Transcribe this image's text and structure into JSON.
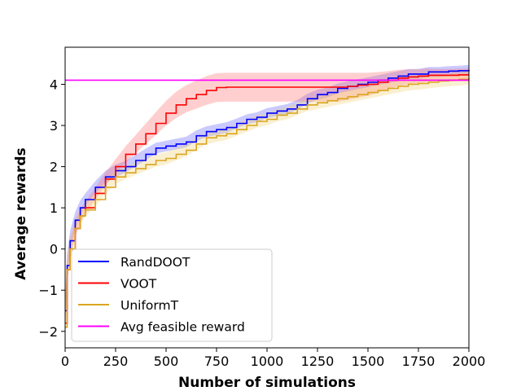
{
  "chart_data": {
    "type": "line",
    "title": "",
    "xlabel": "Number of simulations",
    "ylabel": "Average rewards",
    "xlim": [
      0,
      2000
    ],
    "ylim": [
      -2.4,
      4.9
    ],
    "xticks": [
      0,
      250,
      500,
      750,
      1000,
      1250,
      1500,
      1750,
      2000
    ],
    "xtick_labels": [
      "0",
      "250",
      "500",
      "750",
      "1000",
      "1250",
      "1500",
      "1750",
      "2000"
    ],
    "yticks": [
      -2,
      -1,
      0,
      1,
      2,
      3,
      4
    ],
    "ytick_labels": [
      "−2",
      "−1",
      "0",
      "1",
      "2",
      "3",
      "4"
    ],
    "grid": false,
    "legend_position": "lower-left",
    "series": [
      {
        "name": "RandDOOT",
        "color": "#0000ff",
        "band_color": "#5b5bff",
        "x": [
          0,
          10,
          25,
          50,
          75,
          100,
          150,
          200,
          250,
          300,
          350,
          400,
          450,
          500,
          550,
          600,
          650,
          700,
          750,
          800,
          850,
          900,
          950,
          1000,
          1050,
          1100,
          1150,
          1200,
          1250,
          1300,
          1350,
          1400,
          1450,
          1500,
          1550,
          1600,
          1650,
          1700,
          1750,
          1800,
          1850,
          1900,
          1950,
          2000
        ],
        "y": [
          -1.5,
          -0.4,
          0.2,
          0.7,
          1.0,
          1.2,
          1.5,
          1.75,
          1.9,
          2.0,
          2.15,
          2.3,
          2.45,
          2.5,
          2.55,
          2.6,
          2.75,
          2.85,
          2.9,
          2.95,
          3.05,
          3.15,
          3.2,
          3.3,
          3.35,
          3.4,
          3.5,
          3.65,
          3.75,
          3.8,
          3.9,
          3.95,
          4.0,
          4.05,
          4.1,
          4.15,
          4.2,
          4.25,
          4.25,
          4.3,
          4.3,
          4.32,
          4.33,
          4.35
        ],
        "spread": [
          0.3,
          0.3,
          0.25,
          0.2,
          0.18,
          0.15,
          0.15,
          0.15,
          0.15,
          0.14,
          0.14,
          0.14,
          0.13,
          0.13,
          0.13,
          0.13,
          0.13,
          0.13,
          0.13,
          0.13,
          0.12,
          0.12,
          0.12,
          0.12,
          0.12,
          0.12,
          0.12,
          0.12,
          0.12,
          0.12,
          0.12,
          0.12,
          0.12,
          0.12,
          0.12,
          0.12,
          0.12,
          0.12,
          0.12,
          0.12,
          0.12,
          0.12,
          0.12,
          0.12
        ]
      },
      {
        "name": "VOOT",
        "color": "#ff0000",
        "band_color": "#ff6b6b",
        "x": [
          0,
          10,
          25,
          50,
          75,
          100,
          150,
          200,
          250,
          300,
          350,
          400,
          450,
          500,
          550,
          600,
          650,
          700,
          750,
          800,
          850,
          900,
          950,
          1000,
          1050,
          1100,
          1150,
          1200,
          1250,
          1300,
          1350,
          1400,
          1450,
          1500,
          1550,
          1600,
          1650,
          1700,
          1750,
          1800,
          1850,
          1900,
          1950,
          2000
        ],
        "y": [
          -1.8,
          -0.5,
          0.0,
          0.5,
          0.8,
          1.0,
          1.35,
          1.7,
          2.0,
          2.3,
          2.55,
          2.8,
          3.05,
          3.3,
          3.5,
          3.65,
          3.75,
          3.85,
          3.92,
          3.93,
          3.93,
          3.93,
          3.93,
          3.93,
          3.93,
          3.93,
          3.93,
          3.93,
          3.93,
          3.93,
          3.93,
          3.95,
          3.98,
          4.0,
          4.05,
          4.1,
          4.15,
          4.18,
          4.2,
          4.22,
          4.22,
          4.22,
          4.23,
          4.23
        ],
        "spread": [
          0.3,
          0.3,
          0.25,
          0.2,
          0.18,
          0.15,
          0.15,
          0.16,
          0.18,
          0.2,
          0.22,
          0.25,
          0.28,
          0.3,
          0.32,
          0.33,
          0.34,
          0.35,
          0.35,
          0.35,
          0.35,
          0.35,
          0.35,
          0.35,
          0.35,
          0.35,
          0.35,
          0.35,
          0.35,
          0.35,
          0.35,
          0.33,
          0.3,
          0.28,
          0.25,
          0.22,
          0.2,
          0.18,
          0.17,
          0.16,
          0.15,
          0.15,
          0.15,
          0.15
        ]
      },
      {
        "name": "UniformT",
        "color": "#daa520",
        "band_color": "#f0d070",
        "x": [
          0,
          10,
          25,
          50,
          75,
          100,
          150,
          200,
          250,
          300,
          350,
          400,
          450,
          500,
          550,
          600,
          650,
          700,
          750,
          800,
          850,
          900,
          950,
          1000,
          1050,
          1100,
          1150,
          1200,
          1250,
          1300,
          1350,
          1400,
          1450,
          1500,
          1550,
          1600,
          1650,
          1700,
          1750,
          1800,
          1850,
          1900,
          1950,
          2000
        ],
        "y": [
          -1.9,
          -0.5,
          0.0,
          0.5,
          0.8,
          0.95,
          1.2,
          1.5,
          1.75,
          1.85,
          1.95,
          2.05,
          2.15,
          2.2,
          2.3,
          2.4,
          2.55,
          2.7,
          2.75,
          2.8,
          2.9,
          3.0,
          3.1,
          3.15,
          3.25,
          3.3,
          3.4,
          3.5,
          3.55,
          3.6,
          3.65,
          3.7,
          3.75,
          3.8,
          3.85,
          3.9,
          3.95,
          4.0,
          4.02,
          4.05,
          4.08,
          4.1,
          4.12,
          4.15
        ],
        "spread": [
          0.3,
          0.3,
          0.25,
          0.2,
          0.18,
          0.16,
          0.16,
          0.16,
          0.16,
          0.15,
          0.15,
          0.15,
          0.15,
          0.15,
          0.15,
          0.15,
          0.15,
          0.15,
          0.15,
          0.15,
          0.15,
          0.15,
          0.15,
          0.15,
          0.15,
          0.15,
          0.15,
          0.15,
          0.15,
          0.15,
          0.15,
          0.15,
          0.15,
          0.15,
          0.15,
          0.15,
          0.15,
          0.15,
          0.15,
          0.15,
          0.15,
          0.15,
          0.15,
          0.15
        ]
      },
      {
        "name": "Avg feasible reward",
        "color": "#ff00ff",
        "x": [
          0,
          2000
        ],
        "y": [
          4.1,
          4.1
        ]
      }
    ]
  }
}
